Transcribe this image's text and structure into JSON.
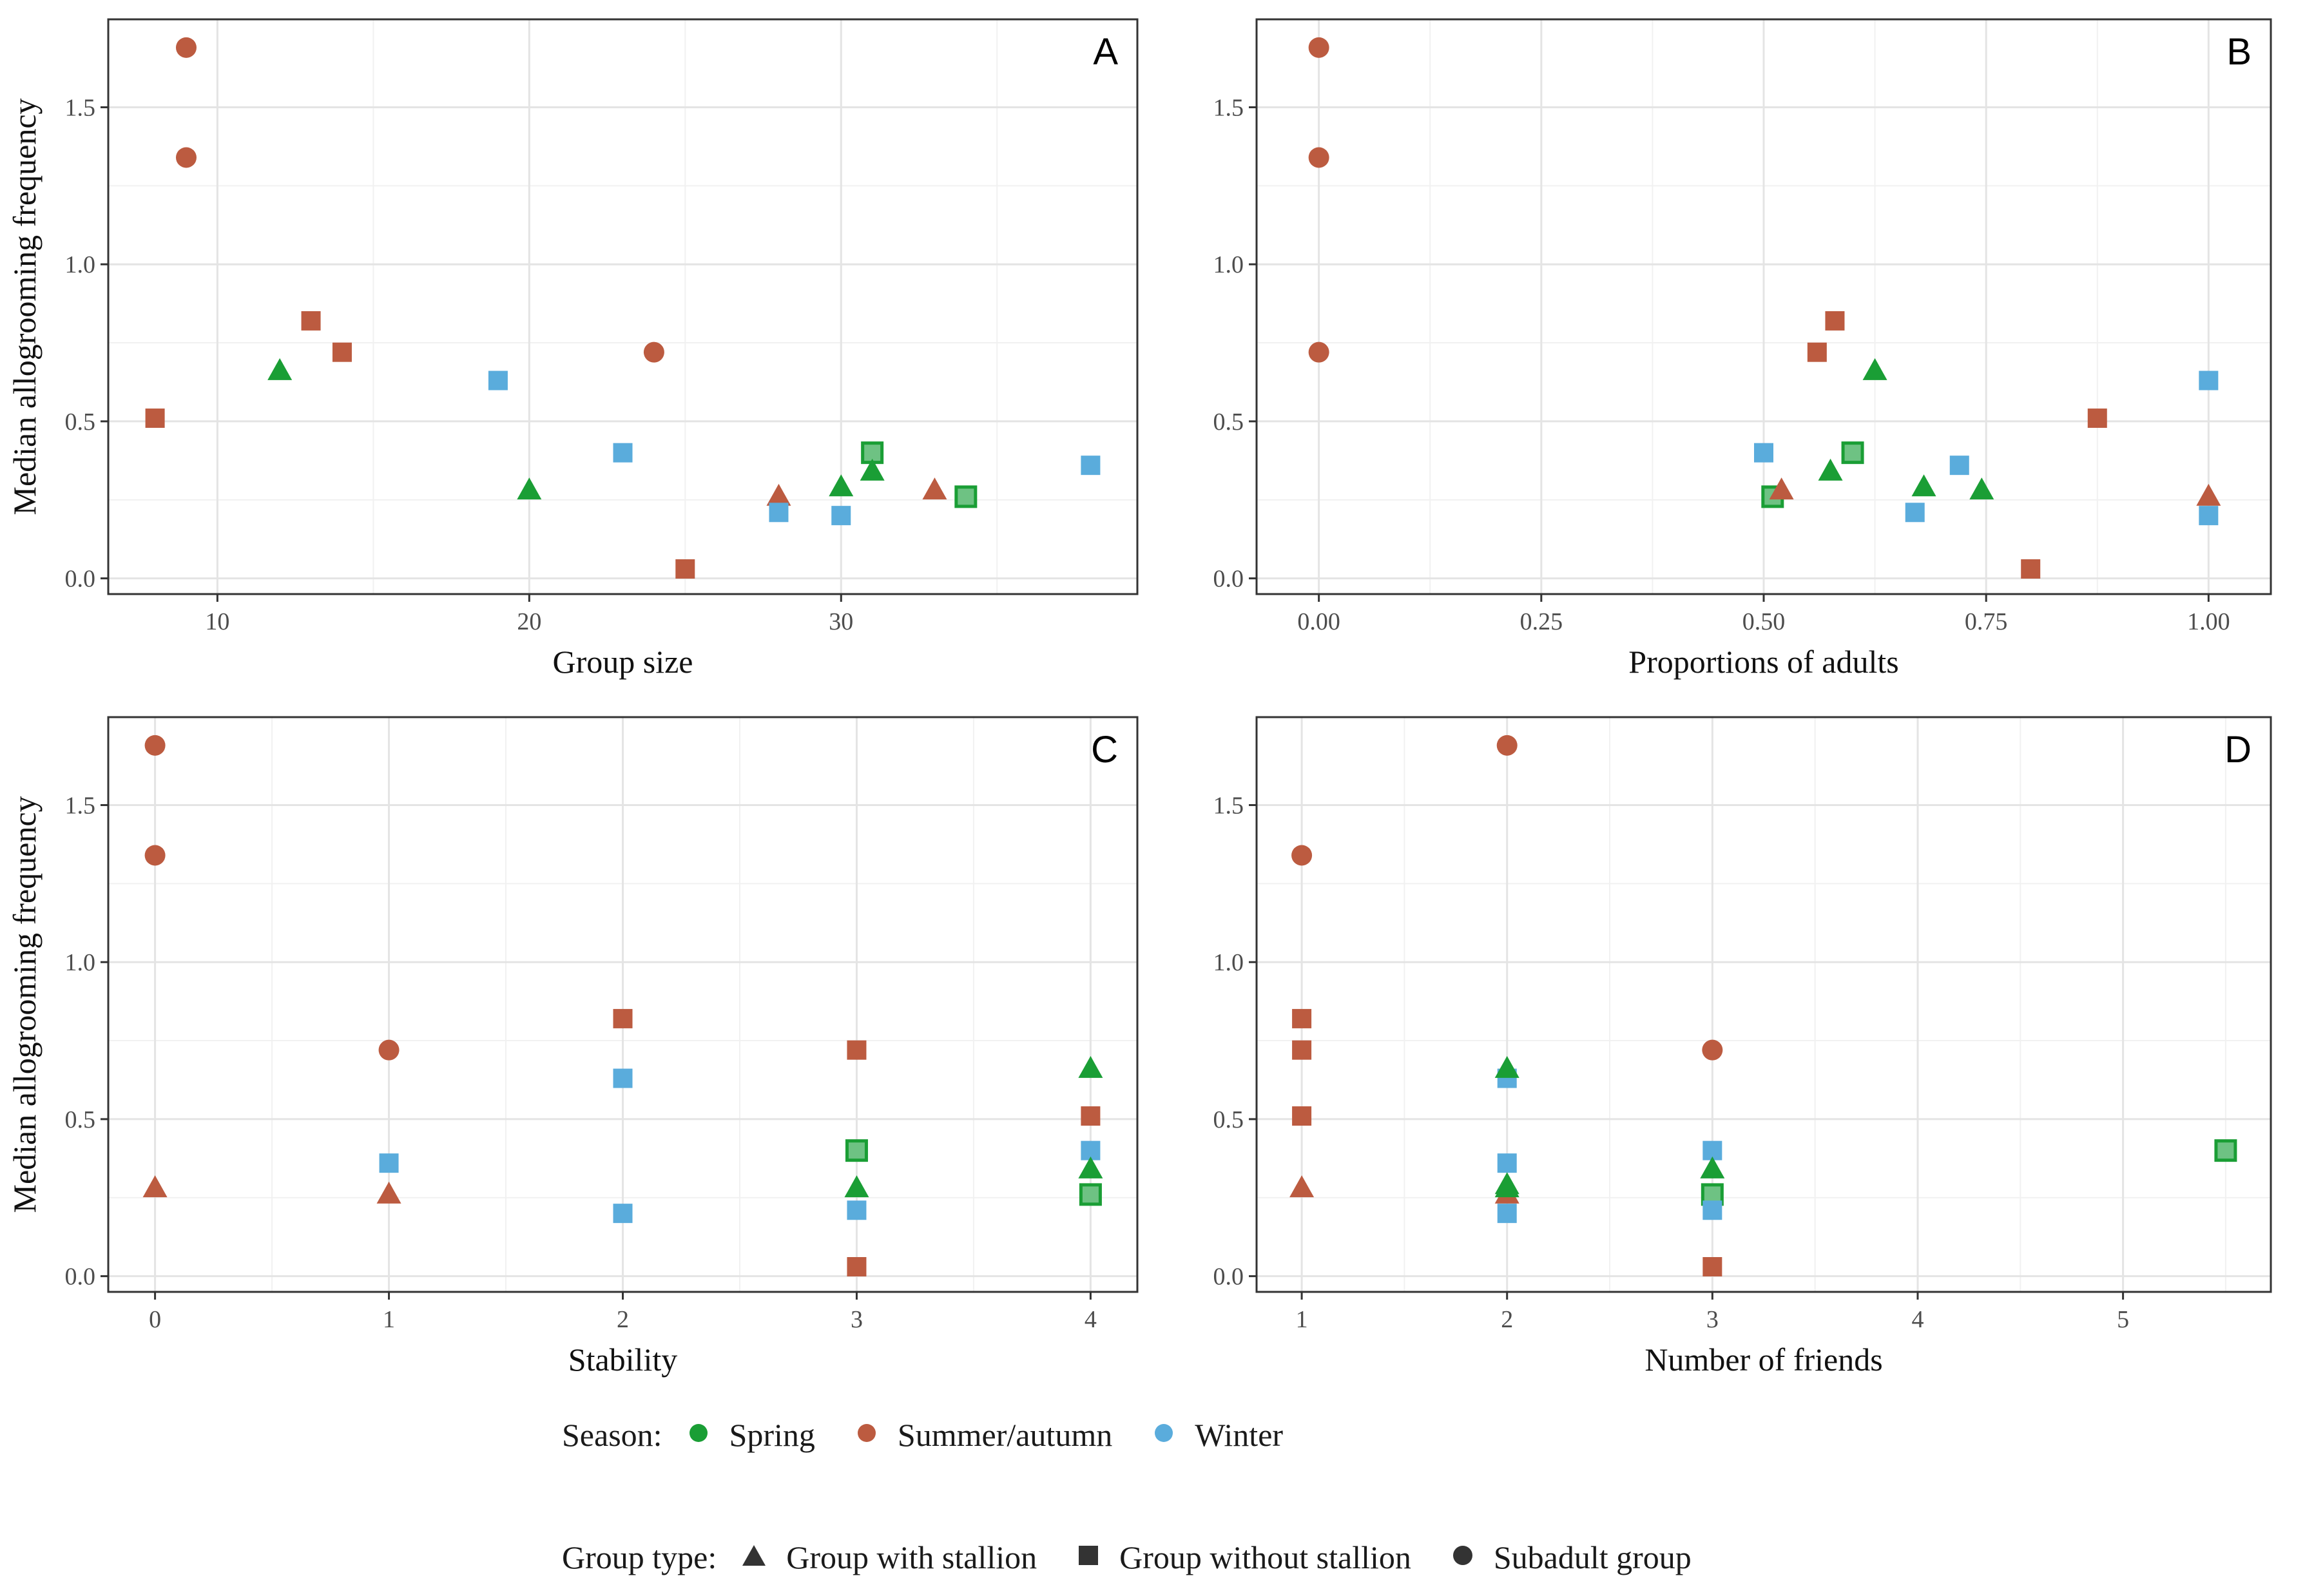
{
  "figure": {
    "shared_ylabel": "Median allogrooming frequency",
    "season_colors": {
      "Spring": "#1a9e35",
      "Summer/autumn": "#bc5b40",
      "Winter": "#5aacdc"
    },
    "group_shapes": {
      "Group with stallion": "triangle",
      "Group without stallion": "square",
      "Subadult group": "circle"
    }
  },
  "chart_data": [
    {
      "type": "scatter",
      "panel_label": "A",
      "title": "",
      "xlabel": "Group size",
      "ylabel": "Median allogrooming frequency",
      "xlim": [
        6.5,
        39.5
      ],
      "ylim": [
        -0.05,
        1.78
      ],
      "xticks": [
        10,
        20,
        30
      ],
      "xtick_labels": [
        "10",
        "20",
        "30"
      ],
      "yticks": [
        0,
        0.5,
        1,
        1.5
      ],
      "ytick_labels": [
        "0.0",
        "0.5",
        "1.0",
        "1.5"
      ],
      "grid": true,
      "points": [
        {
          "x": 9,
          "y": 1.69,
          "season": "Summer/autumn",
          "group": "Subadult group"
        },
        {
          "x": 9,
          "y": 1.34,
          "season": "Summer/autumn",
          "group": "Subadult group"
        },
        {
          "x": 13,
          "y": 0.82,
          "season": "Summer/autumn",
          "group": "Group without stallion"
        },
        {
          "x": 14,
          "y": 0.72,
          "season": "Summer/autumn",
          "group": "Group without stallion"
        },
        {
          "x": 12,
          "y": 0.66,
          "season": "Spring",
          "group": "Group with stallion"
        },
        {
          "x": 8,
          "y": 0.51,
          "season": "Summer/autumn",
          "group": "Group without stallion"
        },
        {
          "x": 19,
          "y": 0.63,
          "season": "Winter",
          "group": "Group without stallion"
        },
        {
          "x": 24,
          "y": 0.72,
          "season": "Summer/autumn",
          "group": "Subadult group"
        },
        {
          "x": 20,
          "y": 0.28,
          "season": "Spring",
          "group": "Group with stallion"
        },
        {
          "x": 23,
          "y": 0.4,
          "season": "Winter",
          "group": "Group without stallion"
        },
        {
          "x": 25,
          "y": 0.03,
          "season": "Summer/autumn",
          "group": "Group without stallion"
        },
        {
          "x": 28,
          "y": 0.26,
          "season": "Summer/autumn",
          "group": "Group with stallion"
        },
        {
          "x": 28,
          "y": 0.21,
          "season": "Winter",
          "group": "Group without stallion"
        },
        {
          "x": 30,
          "y": 0.29,
          "season": "Spring",
          "group": "Group with stallion"
        },
        {
          "x": 30,
          "y": 0.2,
          "season": "Winter",
          "group": "Group without stallion"
        },
        {
          "x": 31,
          "y": 0.4,
          "season": "Spring",
          "group": "Group without stallion"
        },
        {
          "x": 31,
          "y": 0.34,
          "season": "Spring",
          "group": "Group with stallion"
        },
        {
          "x": 33,
          "y": 0.28,
          "season": "Summer/autumn",
          "group": "Group with stallion"
        },
        {
          "x": 34,
          "y": 0.26,
          "season": "Spring",
          "group": "Group without stallion"
        },
        {
          "x": 38,
          "y": 0.36,
          "season": "Winter",
          "group": "Group without stallion"
        }
      ]
    },
    {
      "type": "scatter",
      "panel_label": "B",
      "title": "",
      "xlabel": "Proportions of adults",
      "ylabel": "",
      "xlim": [
        -0.07,
        1.07
      ],
      "ylim": [
        -0.05,
        1.78
      ],
      "xticks": [
        0,
        0.25,
        0.5,
        0.75,
        1
      ],
      "xtick_labels": [
        "0.00",
        "0.25",
        "0.50",
        "0.75",
        "1.00"
      ],
      "yticks": [
        0,
        0.5,
        1,
        1.5
      ],
      "ytick_labels": [
        "0.0",
        "0.5",
        "1.0",
        "1.5"
      ],
      "grid": true,
      "points": [
        {
          "x": 0,
          "y": 1.69,
          "season": "Summer/autumn",
          "group": "Subadult group"
        },
        {
          "x": 0,
          "y": 1.34,
          "season": "Summer/autumn",
          "group": "Subadult group"
        },
        {
          "x": 0,
          "y": 0.72,
          "season": "Summer/autumn",
          "group": "Subadult group"
        },
        {
          "x": 0.5,
          "y": 0.4,
          "season": "Winter",
          "group": "Group without stallion"
        },
        {
          "x": 0.51,
          "y": 0.26,
          "season": "Spring",
          "group": "Group without stallion"
        },
        {
          "x": 0.52,
          "y": 0.28,
          "season": "Summer/autumn",
          "group": "Group with stallion"
        },
        {
          "x": 0.56,
          "y": 0.72,
          "season": "Summer/autumn",
          "group": "Group without stallion"
        },
        {
          "x": 0.58,
          "y": 0.82,
          "season": "Summer/autumn",
          "group": "Group without stallion"
        },
        {
          "x": 0.575,
          "y": 0.34,
          "season": "Spring",
          "group": "Group with stallion"
        },
        {
          "x": 0.6,
          "y": 0.4,
          "season": "Spring",
          "group": "Group without stallion"
        },
        {
          "x": 0.625,
          "y": 0.66,
          "season": "Spring",
          "group": "Group with stallion"
        },
        {
          "x": 0.67,
          "y": 0.21,
          "season": "Winter",
          "group": "Group without stallion"
        },
        {
          "x": 0.68,
          "y": 0.29,
          "season": "Spring",
          "group": "Group with stallion"
        },
        {
          "x": 0.72,
          "y": 0.36,
          "season": "Winter",
          "group": "Group without stallion"
        },
        {
          "x": 0.745,
          "y": 0.28,
          "season": "Spring",
          "group": "Group with stallion"
        },
        {
          "x": 0.8,
          "y": 0.03,
          "season": "Summer/autumn",
          "group": "Group without stallion"
        },
        {
          "x": 0.875,
          "y": 0.51,
          "season": "Summer/autumn",
          "group": "Group without stallion"
        },
        {
          "x": 1.0,
          "y": 0.63,
          "season": "Winter",
          "group": "Group without stallion"
        },
        {
          "x": 1.0,
          "y": 0.26,
          "season": "Summer/autumn",
          "group": "Group with stallion"
        },
        {
          "x": 1.0,
          "y": 0.2,
          "season": "Winter",
          "group": "Group without stallion"
        }
      ]
    },
    {
      "type": "scatter",
      "panel_label": "C",
      "title": "",
      "xlabel": "Stability",
      "ylabel": "Median allogrooming frequency",
      "xlim": [
        -0.2,
        4.2
      ],
      "ylim": [
        -0.05,
        1.78
      ],
      "xticks": [
        0,
        1,
        2,
        3,
        4
      ],
      "xtick_labels": [
        "0",
        "1",
        "2",
        "3",
        "4"
      ],
      "yticks": [
        0,
        0.5,
        1,
        1.5
      ],
      "ytick_labels": [
        "0.0",
        "0.5",
        "1.0",
        "1.5"
      ],
      "grid": true,
      "points": [
        {
          "x": 0,
          "y": 1.69,
          "season": "Summer/autumn",
          "group": "Subadult group"
        },
        {
          "x": 0,
          "y": 1.34,
          "season": "Summer/autumn",
          "group": "Subadult group"
        },
        {
          "x": 0,
          "y": 0.28,
          "season": "Summer/autumn",
          "group": "Group with stallion"
        },
        {
          "x": 1,
          "y": 0.72,
          "season": "Summer/autumn",
          "group": "Subadult group"
        },
        {
          "x": 1,
          "y": 0.36,
          "season": "Winter",
          "group": "Group without stallion"
        },
        {
          "x": 1,
          "y": 0.26,
          "season": "Summer/autumn",
          "group": "Group with stallion"
        },
        {
          "x": 2,
          "y": 0.82,
          "season": "Summer/autumn",
          "group": "Group without stallion"
        },
        {
          "x": 2,
          "y": 0.63,
          "season": "Winter",
          "group": "Group without stallion"
        },
        {
          "x": 2,
          "y": 0.2,
          "season": "Winter",
          "group": "Group without stallion"
        },
        {
          "x": 3,
          "y": 0.72,
          "season": "Summer/autumn",
          "group": "Group without stallion"
        },
        {
          "x": 3,
          "y": 0.4,
          "season": "Spring",
          "group": "Group without stallion"
        },
        {
          "x": 3,
          "y": 0.28,
          "season": "Spring",
          "group": "Group with stallion"
        },
        {
          "x": 3,
          "y": 0.21,
          "season": "Winter",
          "group": "Group without stallion"
        },
        {
          "x": 3,
          "y": 0.03,
          "season": "Summer/autumn",
          "group": "Group without stallion"
        },
        {
          "x": 4,
          "y": 0.66,
          "season": "Spring",
          "group": "Group with stallion"
        },
        {
          "x": 4,
          "y": 0.51,
          "season": "Summer/autumn",
          "group": "Group without stallion"
        },
        {
          "x": 4,
          "y": 0.4,
          "season": "Winter",
          "group": "Group without stallion"
        },
        {
          "x": 4,
          "y": 0.34,
          "season": "Spring",
          "group": "Group with stallion"
        },
        {
          "x": 4,
          "y": 0.26,
          "season": "Spring",
          "group": "Group without stallion"
        }
      ]
    },
    {
      "type": "scatter",
      "panel_label": "D",
      "title": "",
      "xlabel": "Number of friends",
      "ylabel": "",
      "xlim": [
        0.78,
        5.72
      ],
      "ylim": [
        -0.05,
        1.78
      ],
      "xticks": [
        1,
        2,
        3,
        4,
        5
      ],
      "xtick_labels": [
        "1",
        "2",
        "3",
        "4",
        "5"
      ],
      "yticks": [
        0,
        0.5,
        1,
        1.5
      ],
      "ytick_labels": [
        "0.0",
        "0.5",
        "1.0",
        "1.5"
      ],
      "grid": true,
      "points": [
        {
          "x": 1,
          "y": 1.34,
          "season": "Summer/autumn",
          "group": "Subadult group"
        },
        {
          "x": 1,
          "y": 0.82,
          "season": "Summer/autumn",
          "group": "Group without stallion"
        },
        {
          "x": 1,
          "y": 0.72,
          "season": "Summer/autumn",
          "group": "Group without stallion"
        },
        {
          "x": 1,
          "y": 0.51,
          "season": "Summer/autumn",
          "group": "Group without stallion"
        },
        {
          "x": 1,
          "y": 0.28,
          "season": "Summer/autumn",
          "group": "Group with stallion"
        },
        {
          "x": 2,
          "y": 1.69,
          "season": "Summer/autumn",
          "group": "Subadult group"
        },
        {
          "x": 2,
          "y": 0.63,
          "season": "Winter",
          "group": "Group without stallion"
        },
        {
          "x": 2,
          "y": 0.66,
          "season": "Spring",
          "group": "Group with stallion"
        },
        {
          "x": 2,
          "y": 0.36,
          "season": "Winter",
          "group": "Group without stallion"
        },
        {
          "x": 2,
          "y": 0.26,
          "season": "Summer/autumn",
          "group": "Group with stallion"
        },
        {
          "x": 2,
          "y": 0.29,
          "season": "Spring",
          "group": "Group with stallion"
        },
        {
          "x": 2,
          "y": 0.28,
          "season": "Spring",
          "group": "Group with stallion"
        },
        {
          "x": 2,
          "y": 0.2,
          "season": "Winter",
          "group": "Group without stallion"
        },
        {
          "x": 3,
          "y": 0.72,
          "season": "Summer/autumn",
          "group": "Subadult group"
        },
        {
          "x": 3,
          "y": 0.4,
          "season": "Winter",
          "group": "Group without stallion"
        },
        {
          "x": 3,
          "y": 0.34,
          "season": "Spring",
          "group": "Group with stallion"
        },
        {
          "x": 3,
          "y": 0.26,
          "season": "Spring",
          "group": "Group without stallion"
        },
        {
          "x": 3,
          "y": 0.21,
          "season": "Winter",
          "group": "Group without stallion"
        },
        {
          "x": 3,
          "y": 0.03,
          "season": "Summer/autumn",
          "group": "Group without stallion"
        },
        {
          "x": 5.5,
          "y": 0.4,
          "season": "Spring",
          "group": "Group without stallion"
        }
      ]
    }
  ],
  "legend": {
    "season_title": "Season:",
    "season_items": [
      {
        "label": "Spring",
        "color": "#1a9e35"
      },
      {
        "label": "Summer/autumn",
        "color": "#bc5b40"
      },
      {
        "label": "Winter",
        "color": "#5aacdc"
      }
    ],
    "group_title": "Group type:",
    "group_items": [
      {
        "label": "Group with stallion",
        "shape": "triangle"
      },
      {
        "label": "Group without stallion",
        "shape": "square"
      },
      {
        "label": "Subadult group",
        "shape": "circle"
      }
    ]
  }
}
